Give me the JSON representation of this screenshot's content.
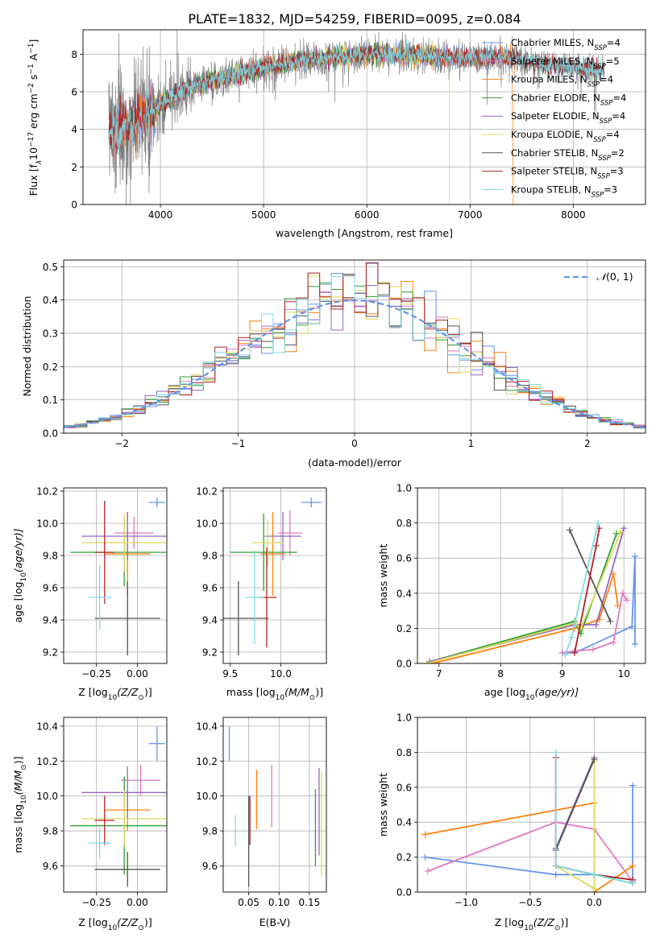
{
  "figure_title": "PLATE=1832, MJD=54259, FIBERID=0095, z=0.084",
  "colors": {
    "Chabrier MILES": "#6495ed",
    "Salpeter MILES": "#e377c2",
    "Kroupa MILES": "#ff7f0e",
    "Chabrier ELODIE": "#2ca02c",
    "Salpeter ELODIE": "#9467bd",
    "Kroupa ELODIE": "#dbdb5e",
    "Chabrier STELIB": "#555555",
    "Salpeter STELIB": "#b22222",
    "Kroupa STELIB": "#7fdbe6",
    "data": "#808080"
  },
  "chart_data": [
    {
      "id": "spectrum",
      "type": "line",
      "xlabel": "wavelength [Angstrom, rest frame]",
      "ylabel_main": "Flux [f",
      "ylabel_sub": "λ",
      "ylabel_rest": "10",
      "ylabel_exp1": "−17",
      "ylabel_mid": " erg cm",
      "ylabel_exp2": "−2",
      "ylabel_mid2": " s",
      "ylabel_exp3": "−1",
      "ylabel_end": " A",
      "ylabel_exp4": "−1",
      "ylabel_close": "]",
      "xlim": [
        3250,
        8700
      ],
      "ylim": [
        0,
        9.3
      ],
      "xticks": [
        4000,
        5000,
        6000,
        7000,
        8000
      ],
      "yticks": [
        0,
        2,
        4,
        6,
        8
      ],
      "data_range": [
        3500,
        8300
      ],
      "continuum": {
        "x": [
          3500,
          3700,
          3850,
          4000,
          4150,
          4300,
          4500,
          4800,
          5000,
          5300,
          5600,
          6000,
          6300,
          6600,
          7000,
          7400,
          7800,
          8300
        ],
        "y": [
          3.8,
          4.3,
          4.6,
          5.3,
          5.8,
          6.3,
          6.6,
          7.0,
          7.3,
          7.6,
          7.8,
          8.0,
          8.0,
          7.9,
          7.8,
          7.8,
          7.4,
          7.1
        ]
      },
      "legend": [
        {
          "label": "Chabrier MILES, N",
          "sub": "SSP",
          "suffix": "=4",
          "key": "Chabrier MILES"
        },
        {
          "label": "Salpeter MILES, N",
          "sub": "SSP",
          "suffix": "=5",
          "key": "Salpeter MILES"
        },
        {
          "label": "Kroupa MILES, N",
          "sub": "SSP",
          "suffix": "=4",
          "key": "Kroupa MILES"
        },
        {
          "label": "Chabrier ELODIE, N",
          "sub": "SSP",
          "suffix": "=4",
          "key": "Chabrier ELODIE"
        },
        {
          "label": "Salpeter ELODIE, N",
          "sub": "SSP",
          "suffix": "=4",
          "key": "Salpeter ELODIE"
        },
        {
          "label": "Kroupa ELODIE, N",
          "sub": "SSP",
          "suffix": "=4",
          "key": "Kroupa ELODIE"
        },
        {
          "label": "Chabrier STELIB, N",
          "sub": "SSP",
          "suffix": "=2",
          "key": "Chabrier STELIB"
        },
        {
          "label": "Salpeter STELIB, N",
          "sub": "SSP",
          "suffix": "=3",
          "key": "Salpeter STELIB"
        },
        {
          "label": "Kroupa STELIB, N",
          "sub": "SSP",
          "suffix": "=3",
          "key": "Kroupa STELIB"
        }
      ],
      "model_ranges": {
        "Chabrier MILES": [
          3540,
          7400
        ],
        "Salpeter MILES": [
          3540,
          7400
        ],
        "Kroupa MILES": [
          3540,
          7410
        ],
        "Chabrier ELODIE": [
          3900,
          6800
        ],
        "Salpeter ELODIE": [
          3900,
          6800
        ],
        "Kroupa ELODIE": [
          3900,
          6800
        ],
        "Chabrier STELIB": [
          3500,
          8300
        ],
        "Salpeter STELIB": [
          3500,
          8300
        ],
        "Kroupa STELIB": [
          3500,
          8300
        ]
      }
    },
    {
      "id": "residuals",
      "type": "histogram",
      "xlabel": "(data-model)/error",
      "ylabel": "Normed distribution",
      "xlim": [
        -2.5,
        2.5
      ],
      "ylim": [
        0,
        0.52
      ],
      "xticks": [
        -2,
        -1,
        0,
        1,
        2
      ],
      "yticks": [
        0.0,
        0.1,
        0.2,
        0.3,
        0.4,
        0.5
      ],
      "bin_width": 0.1,
      "bin_start": -2.5,
      "reference": {
        "label_pre": "𝒩",
        "label_post": "(0, 1)",
        "mean": 0,
        "sigma": 1
      }
    },
    {
      "id": "age-vs-Z",
      "type": "errorbar",
      "xlabel_pre": "Z [log",
      "xlabel_sub": "10",
      "xlabel_post": "(Z/Z",
      "xlabel_sun": "⊙",
      "xlabel_close": ")]",
      "ylabel_pre": "age  [log",
      "ylabel_sub": "10",
      "ylabel_post": "(age/yr)]",
      "xlim": [
        -0.45,
        0.18
      ],
      "ylim": [
        9.13,
        10.22
      ],
      "xticks": [
        -0.25,
        0.0
      ],
      "xticklabels": [
        "−0.25",
        "0.00"
      ],
      "yticks": [
        9.2,
        9.4,
        9.6,
        9.8,
        10.0,
        10.2
      ],
      "points": [
        {
          "model": "Chabrier MILES",
          "x": 0.12,
          "y": 10.13,
          "xerr": 0.05,
          "yerr": 0.03
        },
        {
          "model": "Salpeter MILES",
          "x": -0.02,
          "y": 9.94,
          "xerr": 0.12,
          "yerr": 0.1
        },
        {
          "model": "Kroupa MILES",
          "x": -0.06,
          "y": 9.81,
          "xerr": 0.14,
          "yerr": 0.26
        },
        {
          "model": "Chabrier ELODIE",
          "x": -0.08,
          "y": 9.82,
          "xerr": 0.33,
          "yerr": 0.21
        },
        {
          "model": "Salpeter ELODIE",
          "x": -0.06,
          "y": 9.92,
          "xerr": 0.28,
          "yerr": 0.15
        },
        {
          "model": "Kroupa ELODIE",
          "x": -0.08,
          "y": 9.88,
          "xerr": 0.26,
          "yerr": 0.18
        },
        {
          "model": "Chabrier STELIB",
          "x": -0.06,
          "y": 9.41,
          "xerr": 0.2,
          "yerr": 0.23
        },
        {
          "model": "Salpeter STELIB",
          "x": -0.2,
          "y": 9.82,
          "xerr": 0.06,
          "yerr": 0.32
        },
        {
          "model": "Kroupa STELIB",
          "x": -0.23,
          "y": 9.54,
          "xerr": 0.07,
          "yerr": 0.2
        }
      ]
    },
    {
      "id": "age-vs-mass",
      "type": "errorbar",
      "xlabel_pre": "mass [log",
      "xlabel_sub": "10",
      "xlabel_post": "(M/M",
      "xlabel_sun": "⊙",
      "xlabel_close": ")]",
      "xlim": [
        9.43,
        10.45
      ],
      "ylim": [
        9.13,
        10.22
      ],
      "xticks": [
        9.5,
        10.0
      ],
      "xticklabels": [
        "9.5",
        "10.0"
      ],
      "yticks": [
        9.2,
        9.4,
        9.6,
        9.8,
        10.0,
        10.2
      ],
      "points": [
        {
          "model": "Chabrier MILES",
          "x": 10.3,
          "y": 10.13,
          "xerr": 0.1,
          "yerr": 0.03
        },
        {
          "model": "Salpeter MILES",
          "x": 10.09,
          "y": 9.94,
          "xerr": 0.12,
          "yerr": 0.14
        },
        {
          "model": "Kroupa MILES",
          "x": 9.92,
          "y": 9.81,
          "xerr": 0.12,
          "yerr": 0.26
        },
        {
          "model": "Chabrier ELODIE",
          "x": 9.83,
          "y": 9.82,
          "xerr": 0.33,
          "yerr": 0.24
        },
        {
          "model": "Salpeter ELODIE",
          "x": 10.02,
          "y": 9.92,
          "xerr": 0.18,
          "yerr": 0.15
        },
        {
          "model": "Kroupa ELODIE",
          "x": 9.87,
          "y": 9.88,
          "xerr": 0.16,
          "yerr": 0.14
        },
        {
          "model": "Chabrier STELIB",
          "x": 9.58,
          "y": 9.41,
          "xerr": 0.3,
          "yerr": 0.23
        },
        {
          "model": "Salpeter STELIB",
          "x": 9.86,
          "y": 9.54,
          "xerr": 0.1,
          "yerr": 0.31
        },
        {
          "model": "Kroupa STELIB",
          "x": 9.74,
          "y": 9.54,
          "xerr": 0.09,
          "yerr": 0.29
        }
      ]
    },
    {
      "id": "weight-vs-age",
      "type": "line",
      "xlabel_pre": "age  [log",
      "xlabel_sub": "10",
      "xlabel_post": "(age/yr)]",
      "ylabel": "mass weight",
      "xlim": [
        6.65,
        10.35
      ],
      "ylim": [
        0,
        1.0
      ],
      "xticks": [
        7,
        8,
        9,
        10
      ],
      "yticks": [
        0.0,
        0.2,
        0.4,
        0.6,
        0.8,
        1.0
      ],
      "series": [
        {
          "model": "Chabrier MILES",
          "x": [
            10.18,
            10.18,
            10.13,
            9.2,
            9.0
          ],
          "y": [
            0.11,
            0.61,
            0.21,
            0.06,
            0.06
          ]
        },
        {
          "model": "Salpeter MILES",
          "x": [
            9.0,
            9.2,
            9.5,
            9.83,
            9.98,
            10.05
          ],
          "y": [
            0.06,
            0.07,
            0.08,
            0.12,
            0.4,
            0.36
          ]
        },
        {
          "model": "Kroupa MILES",
          "x": [
            6.9,
            9.2,
            9.6,
            9.83,
            9.9
          ],
          "y": [
            0.0,
            0.2,
            0.25,
            0.51,
            0.33
          ]
        },
        {
          "model": "Chabrier ELODIE",
          "x": [
            6.85,
            9.2,
            9.3,
            9.88
          ],
          "y": [
            0.01,
            0.24,
            0.17,
            0.74
          ]
        },
        {
          "model": "Salpeter ELODIE",
          "x": [
            6.85,
            9.2,
            9.55,
            10.0
          ],
          "y": [
            0.01,
            0.22,
            0.22,
            0.77
          ]
        },
        {
          "model": "Kroupa ELODIE",
          "x": [
            6.8,
            9.2,
            9.3,
            9.95
          ],
          "y": [
            0.0,
            0.23,
            0.2,
            0.75
          ]
        },
        {
          "model": "Chabrier STELIB",
          "x": [
            9.12,
            9.78
          ],
          "y": [
            0.76,
            0.24
          ]
        },
        {
          "model": "Salpeter STELIB",
          "x": [
            9.2,
            9.55,
            9.6
          ],
          "y": [
            0.06,
            0.67,
            0.77
          ]
        },
        {
          "model": "Kroupa STELIB",
          "x": [
            9.05,
            9.15,
            9.58
          ],
          "y": [
            0.05,
            0.15,
            0.8
          ]
        }
      ]
    },
    {
      "id": "mass-vs-Z",
      "type": "errorbar",
      "xlabel_pre": "Z [log",
      "xlabel_sub": "10",
      "xlabel_post": "(Z/Z",
      "xlabel_sun": "⊙",
      "xlabel_close": ")]",
      "ylabel_pre": "mass [log",
      "ylabel_sub": "10",
      "ylabel_post": "(M/M",
      "ylabel_sun": "⊙",
      "ylabel_close": ")]",
      "xlim": [
        -0.45,
        0.18
      ],
      "ylim": [
        9.45,
        10.45
      ],
      "xticks": [
        -0.25,
        0.0
      ],
      "xticklabels": [
        "−0.25",
        "0.00"
      ],
      "yticks": [
        9.6,
        9.8,
        10.0,
        10.2,
        10.4
      ],
      "points": [
        {
          "model": "Chabrier MILES",
          "x": 0.12,
          "y": 10.3,
          "xerr": 0.05,
          "yerr": 0.1
        },
        {
          "model": "Salpeter MILES",
          "x": 0.02,
          "y": 10.09,
          "xerr": 0.12,
          "yerr": 0.09
        },
        {
          "model": "Kroupa MILES",
          "x": -0.06,
          "y": 9.92,
          "xerr": 0.14,
          "yerr": 0.12
        },
        {
          "model": "Chabrier ELODIE",
          "x": -0.08,
          "y": 9.83,
          "xerr": 0.33,
          "yerr": 0.28
        },
        {
          "model": "Salpeter ELODIE",
          "x": -0.06,
          "y": 10.02,
          "xerr": 0.28,
          "yerr": 0.15
        },
        {
          "model": "Kroupa ELODIE",
          "x": -0.08,
          "y": 9.87,
          "xerr": 0.26,
          "yerr": 0.16
        },
        {
          "model": "Chabrier STELIB",
          "x": -0.06,
          "y": 9.58,
          "xerr": 0.2,
          "yerr": 0.1
        },
        {
          "model": "Salpeter STELIB",
          "x": -0.2,
          "y": 9.86,
          "xerr": 0.06,
          "yerr": 0.14
        },
        {
          "model": "Kroupa STELIB",
          "x": -0.23,
          "y": 9.73,
          "xerr": 0.07,
          "yerr": 0.09
        }
      ]
    },
    {
      "id": "mass-vs-EBV",
      "type": "errorbar",
      "xlabel": "E(B-V)",
      "xlim": [
        0.008,
        0.178
      ],
      "ylim": [
        9.45,
        10.45
      ],
      "xticks": [
        0.05,
        0.1,
        0.15
      ],
      "xticklabels": [
        "0.05",
        "0.10",
        "0.15"
      ],
      "yticks": [
        9.6,
        9.8,
        10.0,
        10.2,
        10.4
      ],
      "points": [
        {
          "model": "Chabrier MILES",
          "x": 0.018,
          "y": 10.3,
          "xerr": 0,
          "yerr": 0.1
        },
        {
          "model": "Salpeter MILES",
          "x": 0.088,
          "y": 10.0,
          "xerr": 0,
          "yerr": 0.18
        },
        {
          "model": "Kroupa MILES",
          "x": 0.063,
          "y": 9.98,
          "xerr": 0,
          "yerr": 0.17
        },
        {
          "model": "Chabrier ELODIE",
          "x": 0.16,
          "y": 9.82,
          "xerr": 0,
          "yerr": 0.22
        },
        {
          "model": "Salpeter ELODIE",
          "x": 0.166,
          "y": 9.91,
          "xerr": 0,
          "yerr": 0.25
        },
        {
          "model": "Kroupa ELODIE",
          "x": 0.17,
          "y": 9.84,
          "xerr": 0,
          "yerr": 0.3
        },
        {
          "model": "Chabrier STELIB",
          "x": 0.05,
          "y": 9.74,
          "xerr": 0,
          "yerr": 0.26
        },
        {
          "model": "Salpeter STELIB",
          "x": 0.052,
          "y": 9.86,
          "xerr": 0,
          "yerr": 0.14
        },
        {
          "model": "Kroupa STELIB",
          "x": 0.028,
          "y": 9.8,
          "xerr": 0,
          "yerr": 0.09
        }
      ]
    },
    {
      "id": "weight-vs-Z",
      "type": "line",
      "xlabel_pre": "Z [log",
      "xlabel_sub": "10",
      "xlabel_post": "(Z/Z",
      "xlabel_sun": "⊙",
      "xlabel_close": ")]",
      "ylabel": "mass weight",
      "xlim": [
        -1.38,
        0.4
      ],
      "ylim": [
        0,
        1.0
      ],
      "xticks": [
        -1.0,
        -0.5,
        0.0
      ],
      "xticklabels": [
        "−1.0",
        "−0.5",
        "0.0"
      ],
      "yticks": [
        0.0,
        0.2,
        0.4,
        0.6,
        0.8,
        1.0
      ],
      "series": [
        {
          "model": "Chabrier MILES",
          "x": [
            0.3,
            0.3,
            0.3,
            0.0,
            -0.3,
            -1.32
          ],
          "y": [
            0.07,
            0.61,
            0.07,
            0.1,
            0.1,
            0.2
          ]
        },
        {
          "model": "Salpeter MILES",
          "x": [
            -1.3,
            -0.3,
            0.0,
            0.3
          ],
          "y": [
            0.12,
            0.4,
            0.36,
            0.06
          ]
        },
        {
          "model": "Kroupa MILES",
          "x": [
            -1.32,
            0.0,
            0.0,
            0.3
          ],
          "y": [
            0.33,
            0.51,
            0.0,
            0.15
          ]
        },
        {
          "model": "Chabrier ELODIE",
          "x": [
            -0.3,
            0.0,
            0.3
          ],
          "y": [
            0.15,
            0.1,
            0.05
          ]
        },
        {
          "model": "Salpeter ELODIE",
          "x": [
            -0.3,
            0.0
          ],
          "y": [
            0.25,
            0.77
          ]
        },
        {
          "model": "Kroupa ELODIE",
          "x": [
            0.0,
            0.0,
            -0.3,
            0.3
          ],
          "y": [
            0.75,
            0.02,
            0.15,
            0.05
          ]
        },
        {
          "model": "Chabrier STELIB",
          "x": [
            -0.3,
            0.0
          ],
          "y": [
            0.24,
            0.76
          ]
        },
        {
          "model": "Salpeter STELIB",
          "x": [
            -0.3,
            -0.3,
            0.0,
            0.3
          ],
          "y": [
            0.77,
            0.15,
            0.1,
            0.07
          ]
        },
        {
          "model": "Kroupa STELIB",
          "x": [
            -0.3,
            -0.3,
            0.0,
            0.3
          ],
          "y": [
            0.8,
            0.15,
            0.1,
            0.05
          ]
        }
      ]
    }
  ]
}
